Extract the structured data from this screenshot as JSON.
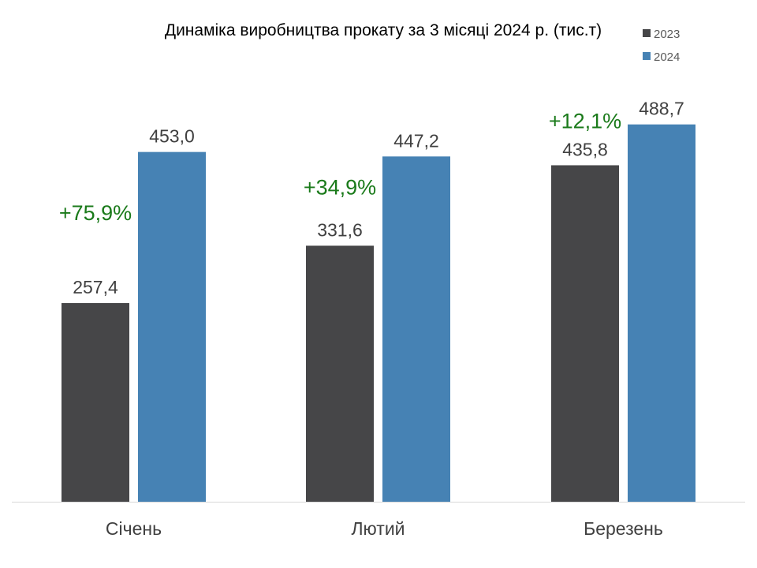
{
  "chart_data": {
    "type": "bar",
    "title": "Динаміка виробництва прокату за 3 місяці 2024 р. (тис.т)",
    "xlabel": "",
    "ylabel": "",
    "ylim": [
      0,
      500
    ],
    "grid": false,
    "legend_position": "top-right",
    "categories": [
      "Січень",
      "Лютий",
      "Березень"
    ],
    "series": [
      {
        "name": "2023",
        "color": "#464648",
        "values": [
          257.4,
          331.6,
          435.8
        ],
        "labels": [
          "257,4",
          "331,6",
          "435,8"
        ]
      },
      {
        "name": "2024",
        "color": "#4682b4",
        "values": [
          453.0,
          447.2,
          488.7
        ],
        "labels": [
          "453,0",
          "447,2",
          "488,7"
        ]
      }
    ],
    "annotations": [
      "+75,9%",
      "+34,9%",
      "+12,1%"
    ],
    "annotation_color": "#1a7a1a"
  }
}
